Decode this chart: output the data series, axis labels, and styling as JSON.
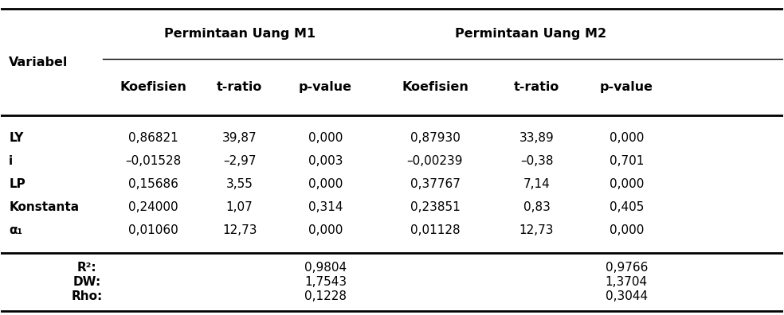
{
  "header_group": [
    "Permintaan Uang M1",
    "Permintaan Uang M2"
  ],
  "header_sub": [
    "Koefisien",
    "t-ratio",
    "p-value",
    "Koefisien",
    "t-ratio",
    "p-value"
  ],
  "col0_header": "Variabel",
  "rows": [
    [
      "LY",
      "0,86821",
      "39,87",
      "0,000",
      "0,87930",
      "33,89",
      "0,000"
    ],
    [
      "i",
      "–0,01528",
      "–2,97",
      "0,003",
      "–0,00239",
      "–0,38",
      "0,701"
    ],
    [
      "LP",
      "0,15686",
      "3,55",
      "0,000",
      "0,37767",
      "7,14",
      "0,000"
    ],
    [
      "Konstanta",
      "0,24000",
      "1,07",
      "0,314",
      "0,23851",
      "0,83",
      "0,405"
    ],
    [
      "α₁",
      "0,01060",
      "12,73",
      "0,000",
      "0,01128",
      "12,73",
      "0,000"
    ]
  ],
  "stats": [
    [
      "R²:",
      "0,9804",
      "0,9766"
    ],
    [
      "DW:",
      "1,7543",
      "1,3704"
    ],
    [
      "Rho:",
      "0,1228",
      "0,3044"
    ]
  ],
  "bg_color": "#ffffff",
  "text_color": "#000000",
  "line_color": "#000000",
  "fs_header_bold": 11.5,
  "fs_data": 11.0,
  "fs_stats": 11.0,
  "lw_thick": 2.0,
  "lw_thin": 1.0
}
